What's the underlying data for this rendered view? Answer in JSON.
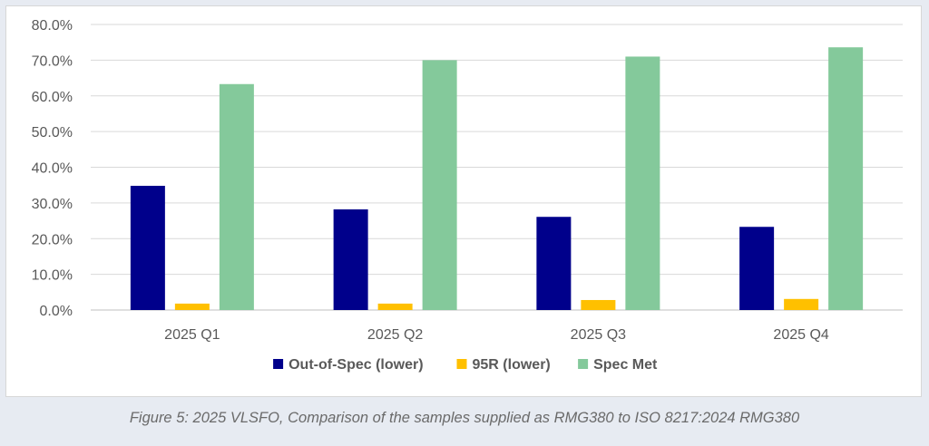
{
  "caption": "Figure 5: 2025 VLSFO, Comparison of the samples supplied as RMG380 to ISO 8217:2024 RMG380",
  "chart_data": {
    "type": "bar",
    "title": "",
    "xlabel": "",
    "ylabel": "",
    "categories": [
      "2025 Q1",
      "2025 Q2",
      "2025 Q3",
      "2025 Q4"
    ],
    "series": [
      {
        "name": "Out-of-Spec (lower)",
        "color": "#00008b",
        "values": [
          34.8,
          28.2,
          26.1,
          23.3
        ]
      },
      {
        "name": "95R (lower)",
        "color": "#ffc000",
        "values": [
          1.8,
          1.8,
          2.8,
          3.1
        ]
      },
      {
        "name": "Spec Met",
        "color": "#84c99b",
        "values": [
          63.3,
          70.0,
          71.0,
          73.6
        ]
      }
    ],
    "ylim": [
      0,
      80
    ],
    "yticks": [
      0,
      10,
      20,
      30,
      40,
      50,
      60,
      70,
      80
    ],
    "ytick_labels": [
      "0.0%",
      "10.0%",
      "20.0%",
      "30.0%",
      "40.0%",
      "50.0%",
      "60.0%",
      "70.0%",
      "80.0%"
    ],
    "grid": true,
    "legend_position": "bottom"
  }
}
